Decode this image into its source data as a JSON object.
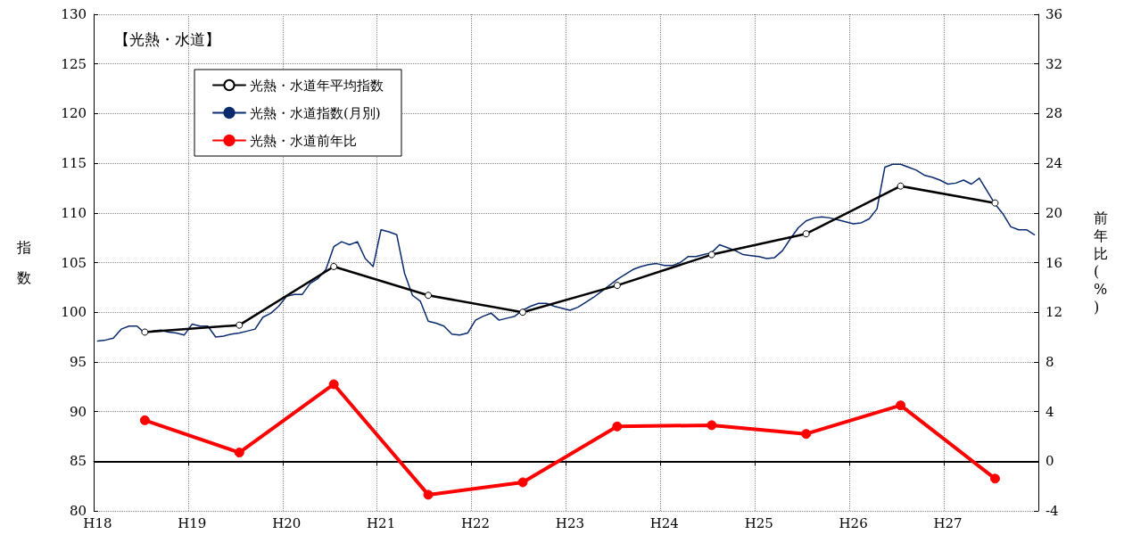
{
  "chart_data": {
    "type": "line",
    "title": "【光熱・水道】",
    "ylabel": "指数",
    "y2label": "前年比(%)",
    "categories": [
      "H18",
      null,
      null,
      null,
      null,
      null,
      null,
      null,
      null,
      null,
      null,
      null,
      "H19",
      null,
      null,
      null,
      null,
      null,
      null,
      null,
      null,
      null,
      null,
      null,
      "H20",
      null,
      null,
      null,
      null,
      null,
      null,
      null,
      null,
      null,
      null,
      null,
      "H21",
      null,
      null,
      null,
      null,
      null,
      null,
      null,
      null,
      null,
      null,
      null,
      "H22",
      null,
      null,
      null,
      null,
      null,
      null,
      null,
      null,
      null,
      null,
      null,
      "H23",
      null,
      null,
      null,
      null,
      null,
      null,
      null,
      null,
      null,
      null,
      null,
      "H24",
      null,
      null,
      null,
      null,
      null,
      null,
      null,
      null,
      null,
      null,
      null,
      "H25",
      null,
      null,
      null,
      null,
      null,
      null,
      null,
      null,
      null,
      null,
      null,
      "H26",
      null,
      null,
      null,
      null,
      null,
      null,
      null,
      null,
      null,
      null,
      null,
      "H27",
      null,
      null,
      null,
      null,
      null,
      null,
      null,
      null,
      null,
      null,
      null
    ],
    "ylim": [
      80,
      130
    ],
    "yticks": [
      80,
      85,
      90,
      95,
      100,
      105,
      110,
      115,
      120,
      125,
      130
    ],
    "y2lim": [
      -4,
      36
    ],
    "y2ticks": [
      -4,
      0,
      4,
      8,
      12,
      16,
      20,
      24,
      28,
      32,
      36
    ],
    "grid": true,
    "legend": "top left",
    "line_style": "solid",
    "ref_lines": [
      {
        "axis": "y2",
        "value": 0,
        "color": "#000000"
      }
    ],
    "series": [
      {
        "name": "光熱・水道年平均指数",
        "color": "#000000",
        "marker": "circle",
        "values": [
          null,
          null,
          null,
          null,
          null,
          null,
          98.0,
          null,
          null,
          null,
          null,
          null,
          null,
          null,
          null,
          null,
          null,
          null,
          98.7,
          null,
          null,
          null,
          null,
          null,
          null,
          null,
          null,
          null,
          null,
          null,
          104.6,
          null,
          null,
          null,
          null,
          null,
          null,
          null,
          null,
          null,
          null,
          null,
          101.7,
          null,
          null,
          null,
          null,
          null,
          null,
          null,
          null,
          null,
          null,
          null,
          100.0,
          null,
          null,
          null,
          null,
          null,
          null,
          null,
          null,
          null,
          null,
          null,
          102.7,
          null,
          null,
          null,
          null,
          null,
          null,
          null,
          null,
          null,
          null,
          null,
          105.8,
          null,
          null,
          null,
          null,
          null,
          null,
          null,
          null,
          null,
          null,
          null,
          107.9,
          null,
          null,
          null,
          null,
          null,
          null,
          null,
          null,
          null,
          null,
          null,
          112.7,
          null,
          null,
          null,
          null,
          null,
          null,
          null,
          null,
          null,
          null,
          null,
          111.0,
          null,
          null,
          null,
          null,
          null
        ]
      },
      {
        "name": "光熱・水道指数(月別)",
        "color": "#0a2a6e",
        "marker": "none",
        "values": [
          97.1,
          97.2,
          97.4,
          98.3,
          98.6,
          98.6,
          97.9,
          98.1,
          98.2,
          98.0,
          97.9,
          97.7,
          98.8,
          98.6,
          98.6,
          97.5,
          97.6,
          97.8,
          97.9,
          98.1,
          98.3,
          99.5,
          99.9,
          100.6,
          101.6,
          101.8,
          101.8,
          102.9,
          103.4,
          104.3,
          106.6,
          107.1,
          106.8,
          107.1,
          105.4,
          104.6,
          108.3,
          108.1,
          107.8,
          103.9,
          101.7,
          101.1,
          99.1,
          98.9,
          98.6,
          97.8,
          97.7,
          97.9,
          99.2,
          99.6,
          99.9,
          99.2,
          99.4,
          99.6,
          100.2,
          100.6,
          100.9,
          100.9,
          100.6,
          100.4,
          100.2,
          100.5,
          101.0,
          101.5,
          102.1,
          102.7,
          103.3,
          103.8,
          104.3,
          104.6,
          104.8,
          104.9,
          104.7,
          104.7,
          105.0,
          105.6,
          105.6,
          105.8,
          106.0,
          106.8,
          106.5,
          106.2,
          105.8,
          105.7,
          105.6,
          105.4,
          105.5,
          106.2,
          107.4,
          108.5,
          109.2,
          109.5,
          109.6,
          109.5,
          109.3,
          109.1,
          108.9,
          109.0,
          109.4,
          110.4,
          114.6,
          114.9,
          114.9,
          114.6,
          114.3,
          113.8,
          113.6,
          113.3,
          112.9,
          113.0,
          113.3,
          112.9,
          113.5,
          112.2,
          110.9,
          109.9,
          108.6,
          108.3,
          108.3,
          107.8
        ]
      },
      {
        "name": "光熱・水道前年比",
        "color": "#ff0000",
        "marker": "circle",
        "axis": "y2",
        "values": [
          null,
          null,
          null,
          null,
          null,
          null,
          3.3,
          null,
          null,
          null,
          null,
          null,
          null,
          null,
          null,
          null,
          null,
          null,
          0.7,
          null,
          null,
          null,
          null,
          null,
          null,
          null,
          null,
          null,
          null,
          null,
          6.2,
          null,
          null,
          null,
          null,
          null,
          null,
          null,
          null,
          null,
          null,
          null,
          -2.7,
          null,
          null,
          null,
          null,
          null,
          null,
          null,
          null,
          null,
          null,
          null,
          -1.7,
          null,
          null,
          null,
          null,
          null,
          null,
          null,
          null,
          null,
          null,
          null,
          2.8,
          null,
          null,
          null,
          null,
          null,
          null,
          null,
          null,
          null,
          null,
          null,
          2.9,
          null,
          null,
          null,
          null,
          null,
          null,
          null,
          null,
          null,
          null,
          null,
          2.2,
          null,
          null,
          null,
          null,
          null,
          null,
          null,
          null,
          null,
          null,
          null,
          4.5,
          null,
          null,
          null,
          null,
          null,
          null,
          null,
          null,
          null,
          null,
          null,
          -1.4,
          null,
          null,
          null,
          null,
          null
        ]
      }
    ]
  }
}
